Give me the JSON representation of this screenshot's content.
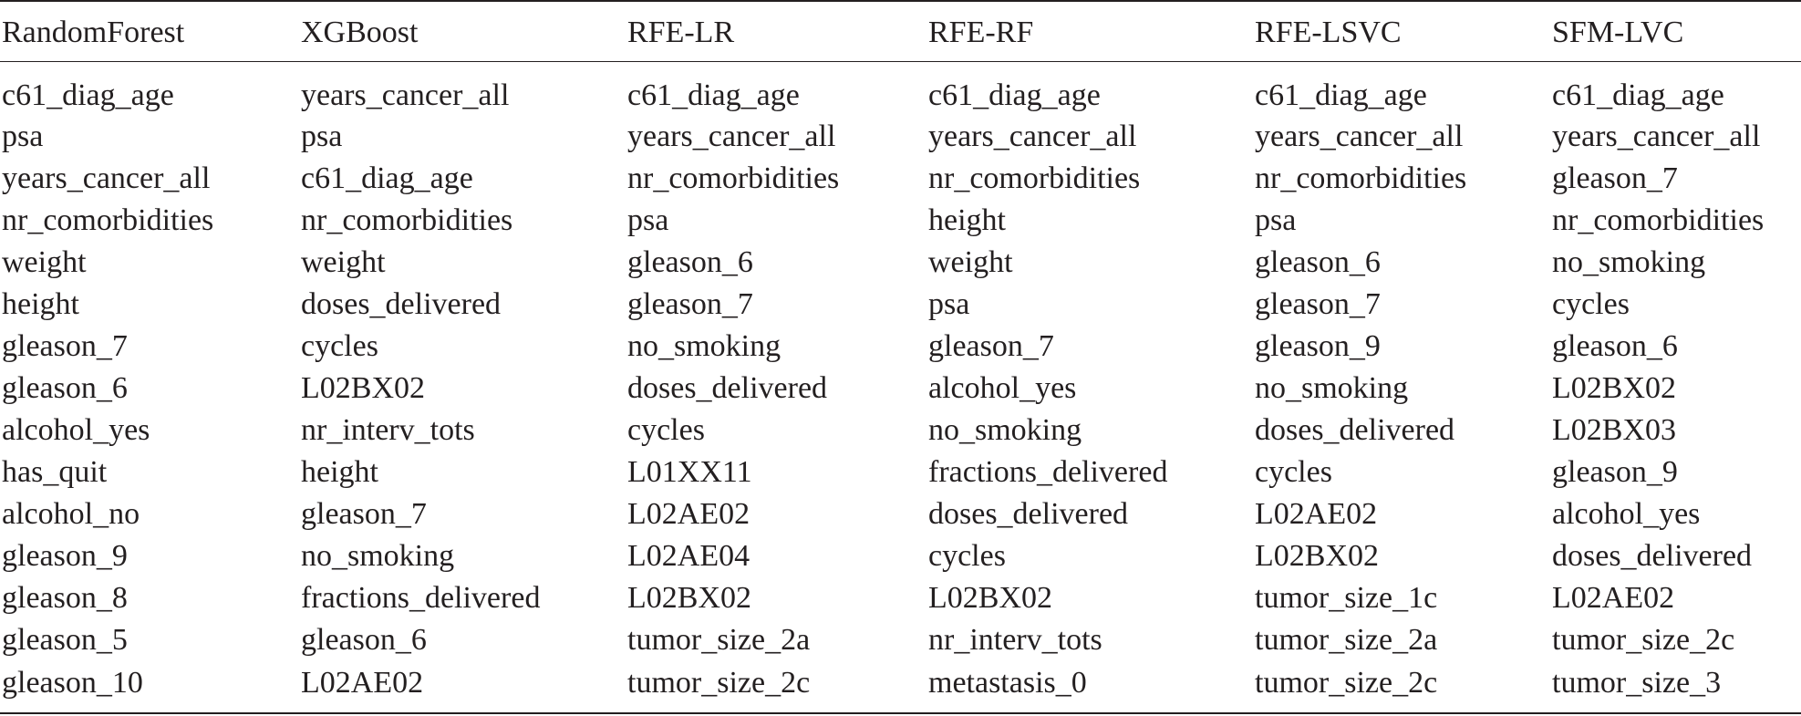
{
  "table": {
    "headers": [
      "RandomForest",
      "XGBoost",
      "RFE-LR",
      "RFE-RF",
      "RFE-LSVC",
      "SFM-LVC"
    ],
    "rows": [
      [
        "c61_diag_age",
        "years_cancer_all",
        "c61_diag_age",
        "c61_diag_age",
        "c61_diag_age",
        "c61_diag_age"
      ],
      [
        "psa",
        "psa",
        "years_cancer_all",
        "years_cancer_all",
        "years_cancer_all",
        "years_cancer_all"
      ],
      [
        "years_cancer_all",
        "c61_diag_age",
        "nr_comorbidities",
        "nr_comorbidities",
        "nr_comorbidities",
        "gleason_7"
      ],
      [
        "nr_comorbidities",
        "nr_comorbidities",
        "psa",
        "height",
        "psa",
        "nr_comorbidities"
      ],
      [
        "weight",
        "weight",
        "gleason_6",
        "weight",
        "gleason_6",
        "no_smoking"
      ],
      [
        "height",
        "doses_delivered",
        "gleason_7",
        "psa",
        "gleason_7",
        "cycles"
      ],
      [
        "gleason_7",
        "cycles",
        "no_smoking",
        "gleason_7",
        "gleason_9",
        "gleason_6"
      ],
      [
        "gleason_6",
        "L02BX02",
        "doses_delivered",
        "alcohol_yes",
        "no_smoking",
        "L02BX02"
      ],
      [
        "alcohol_yes",
        "nr_interv_tots",
        "cycles",
        "no_smoking",
        "doses_delivered",
        "L02BX03"
      ],
      [
        "has_quit",
        "height",
        "L01XX11",
        "fractions_delivered",
        "cycles",
        "gleason_9"
      ],
      [
        "alcohol_no",
        "gleason_7",
        "L02AE02",
        "doses_delivered",
        "L02AE02",
        "alcohol_yes"
      ],
      [
        "gleason_9",
        "no_smoking",
        "L02AE04",
        "cycles",
        "L02BX02",
        "doses_delivered"
      ],
      [
        "gleason_8",
        "fractions_delivered",
        "L02BX02",
        "L02BX02",
        "tumor_size_1c",
        "L02AE02"
      ],
      [
        "gleason_5",
        "gleason_6",
        "tumor_size_2a",
        "nr_interv_tots",
        "tumor_size_2a",
        "tumor_size_2c"
      ],
      [
        "gleason_10",
        "L02AE02",
        "tumor_size_2c",
        "metastasis_0",
        "tumor_size_2c",
        "tumor_size_3"
      ]
    ]
  }
}
